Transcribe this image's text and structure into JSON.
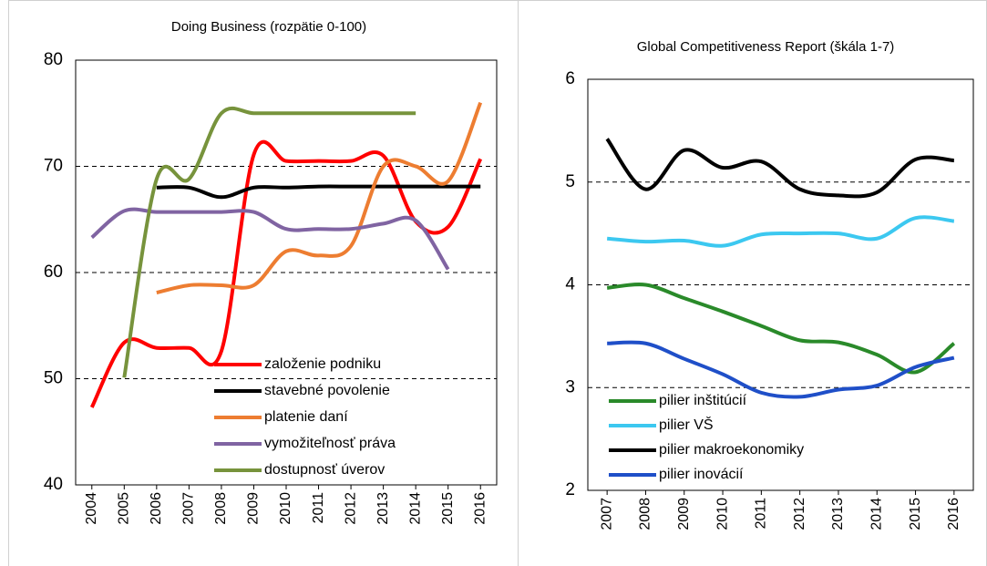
{
  "chart_data": [
    {
      "type": "line",
      "title": "Doing Business (rozpätie 0-100)",
      "categories": [
        "2004",
        "2005",
        "2006",
        "2007",
        "2008",
        "2009",
        "2010",
        "2011",
        "2012",
        "2013",
        "2014",
        "2015",
        "2016"
      ],
      "ylim": [
        40,
        80
      ],
      "yticks": [
        40,
        50,
        60,
        70,
        80
      ],
      "grid": true,
      "legend": "lower right",
      "series": [
        {
          "name": "založenie podniku",
          "color": "#ff0000",
          "values": [
            47.3,
            53.4,
            52.9,
            52.9,
            52.6,
            71.1,
            70.5,
            70.5,
            70.5,
            71.0,
            64.8,
            64.3,
            70.7
          ]
        },
        {
          "name": "stavebné povolenie",
          "color": "#000000",
          "values": [
            null,
            null,
            68.0,
            68.0,
            67.1,
            68.0,
            68.0,
            68.1,
            68.1,
            68.1,
            68.1,
            68.1,
            68.1
          ]
        },
        {
          "name": "platenie daní",
          "color": "#ed7d31",
          "values": [
            null,
            null,
            58.1,
            58.8,
            58.8,
            58.8,
            62.0,
            61.6,
            62.5,
            70.0,
            70.0,
            68.6,
            76.0
          ]
        },
        {
          "name": "vymožiteľnosť práva",
          "color": "#8064a2",
          "values": [
            63.3,
            65.8,
            65.7,
            65.7,
            65.7,
            65.7,
            64.1,
            64.1,
            64.1,
            64.6,
            64.9,
            60.3,
            null
          ]
        },
        {
          "name": "dostupnosť úverov",
          "color": "#77933c",
          "values": [
            null,
            50.1,
            68.8,
            68.8,
            75.0,
            75.0,
            75.0,
            75.0,
            75.0,
            75.0,
            75.0,
            null,
            null
          ]
        }
      ]
    },
    {
      "type": "line",
      "title": "Global Competitiveness Report (škála 1-7)",
      "categories": [
        "2007",
        "2008",
        "2009",
        "2010",
        "2011",
        "2012",
        "2013",
        "2014",
        "2015",
        "2016"
      ],
      "ylim": [
        2,
        6
      ],
      "yticks": [
        2,
        3,
        4,
        5,
        6
      ],
      "grid": true,
      "legend": "lower left",
      "series": [
        {
          "name": "pilier inštitúcií",
          "color": "#2a8a2a",
          "values": [
            3.97,
            4.0,
            3.87,
            3.74,
            3.6,
            3.46,
            3.44,
            3.32,
            3.15,
            3.43
          ]
        },
        {
          "name": "pilier VŠ",
          "color": "#3cc8f0",
          "values": [
            4.45,
            4.42,
            4.43,
            4.38,
            4.49,
            4.5,
            4.5,
            4.45,
            4.65,
            4.62
          ]
        },
        {
          "name": "pilier makroekonomiky",
          "color": "#000000",
          "values": [
            5.42,
            4.93,
            5.31,
            5.14,
            5.2,
            4.93,
            4.87,
            4.9,
            5.22,
            5.21
          ]
        },
        {
          "name": "pilier inovácií",
          "color": "#1f4fc8",
          "values": [
            3.43,
            3.43,
            3.28,
            3.13,
            2.95,
            2.91,
            2.98,
            3.02,
            3.2,
            3.29
          ]
        }
      ]
    }
  ]
}
